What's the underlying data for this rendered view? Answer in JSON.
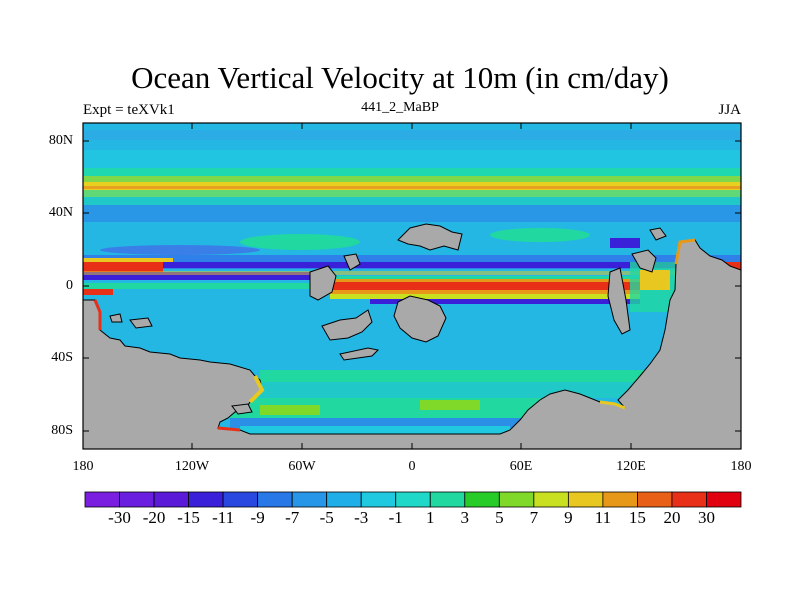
{
  "title": "Ocean Vertical Velocity at 10m (in cm/day)",
  "subtitle_left": "Expt = teXVk1",
  "subtitle_center": "441_2_MaBP",
  "subtitle_right": "JJA",
  "lat_labels": [
    "80N",
    "40N",
    "0",
    "40S",
    "80S"
  ],
  "lon_labels": [
    "180",
    "120W",
    "60W",
    "0",
    "60E",
    "120E",
    "180"
  ],
  "colorbar": {
    "labels": [
      "-30",
      "-20",
      "-15",
      "-11",
      "-9",
      "-7",
      "-5",
      "-3",
      "-1",
      "1",
      "3",
      "5",
      "7",
      "9",
      "11",
      "15",
      "20",
      "30"
    ],
    "colors": [
      "#7a1fe0",
      "#6a1ee0",
      "#5a1ad8",
      "#3a20d8",
      "#2848e0",
      "#2878e8",
      "#2896e8",
      "#20aee8",
      "#20c8e0",
      "#20d8c8",
      "#20d8a0",
      "#28cc28",
      "#80d828",
      "#c8e020",
      "#e8c820",
      "#e89818",
      "#e86018",
      "#e83018",
      "#e00010"
    ]
  },
  "colors": {
    "land": "#a9a9a9",
    "background": "#25b7e4"
  }
}
